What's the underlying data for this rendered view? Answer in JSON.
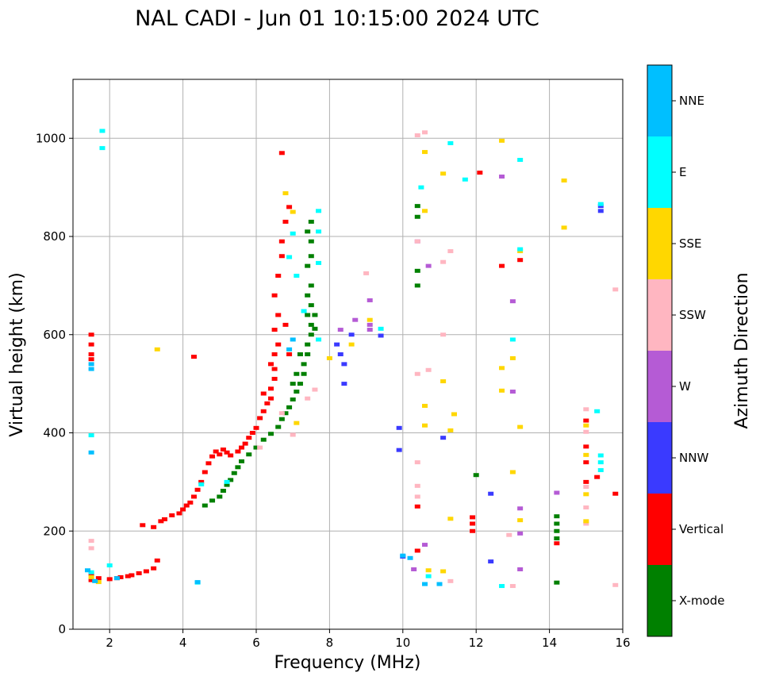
{
  "chart_data": {
    "type": "scatter",
    "title": "NAL CADI - Jun 01 10:15:00 2024 UTC",
    "xlabel": "Frequency (MHz)",
    "ylabel": "Virtual height (km)",
    "xlim": [
      1,
      16
    ],
    "ylim": [
      0,
      1120
    ],
    "xticks": [
      "2",
      "4",
      "6",
      "8",
      "10",
      "12",
      "14",
      "16"
    ],
    "yticks": [
      "0",
      "200",
      "400",
      "600",
      "800",
      "1000"
    ],
    "grid": true,
    "colorbar": {
      "label": "Azimuth Direction",
      "categories": [
        {
          "name": "X-mode",
          "color": "#008000"
        },
        {
          "name": "Vertical",
          "color": "#ff0000"
        },
        {
          "name": "NNW",
          "color": "#3a3aff"
        },
        {
          "name": "W",
          "color": "#b55bd5"
        },
        {
          "name": "SSW",
          "color": "#ffb6c1"
        },
        {
          "name": "SSE",
          "color": "#ffd700"
        },
        {
          "name": "E",
          "color": "#00ffff"
        },
        {
          "name": "NNE",
          "color": "#00bfff"
        }
      ]
    },
    "series": [
      {
        "name": "Vertical",
        "points": [
          [
            1.5,
            100
          ],
          [
            1.5,
            112
          ],
          [
            1.7,
            104
          ],
          [
            2.0,
            102
          ],
          [
            2.2,
            104
          ],
          [
            2.3,
            106
          ],
          [
            2.5,
            108
          ],
          [
            2.6,
            110
          ],
          [
            2.8,
            114
          ],
          [
            3.0,
            118
          ],
          [
            3.2,
            124
          ],
          [
            3.3,
            140
          ],
          [
            2.9,
            212
          ],
          [
            3.2,
            208
          ],
          [
            3.4,
            220
          ],
          [
            3.5,
            224
          ],
          [
            3.7,
            232
          ],
          [
            3.9,
            236
          ],
          [
            4.0,
            244
          ],
          [
            4.1,
            252
          ],
          [
            4.2,
            258
          ],
          [
            4.3,
            270
          ],
          [
            4.4,
            284
          ],
          [
            4.5,
            300
          ],
          [
            4.6,
            320
          ],
          [
            4.7,
            338
          ],
          [
            4.8,
            352
          ],
          [
            4.9,
            362
          ],
          [
            5.0,
            356
          ],
          [
            5.1,
            366
          ],
          [
            5.2,
            360
          ],
          [
            5.3,
            354
          ],
          [
            5.5,
            362
          ],
          [
            5.6,
            370
          ],
          [
            5.7,
            378
          ],
          [
            5.8,
            390
          ],
          [
            5.9,
            400
          ],
          [
            6.0,
            410
          ],
          [
            6.1,
            430
          ],
          [
            6.2,
            444
          ],
          [
            6.3,
            460
          ],
          [
            6.4,
            470
          ],
          [
            6.4,
            490
          ],
          [
            6.5,
            510
          ],
          [
            6.5,
            530
          ],
          [
            6.5,
            560
          ],
          [
            6.6,
            580
          ],
          [
            6.5,
            610
          ],
          [
            6.6,
            640
          ],
          [
            6.5,
            680
          ],
          [
            6.6,
            720
          ],
          [
            6.7,
            760
          ],
          [
            6.7,
            790
          ],
          [
            6.8,
            830
          ],
          [
            6.9,
            860
          ],
          [
            6.7,
            970
          ],
          [
            6.8,
            620
          ],
          [
            6.9,
            560
          ],
          [
            1.5,
            600
          ],
          [
            1.5,
            580
          ],
          [
            1.5,
            560
          ],
          [
            1.5,
            550
          ],
          [
            4.3,
            555
          ],
          [
            6.2,
            480
          ],
          [
            6.4,
            540
          ],
          [
            11.9,
            200
          ],
          [
            11.9,
            215
          ],
          [
            11.9,
            228
          ],
          [
            12.1,
            930
          ],
          [
            12.7,
            740
          ],
          [
            13.2,
            752
          ],
          [
            10.4,
            250
          ],
          [
            10.4,
            160
          ],
          [
            15.0,
            300
          ],
          [
            15.0,
            340
          ],
          [
            15.0,
            372
          ],
          [
            15.0,
            425
          ],
          [
            15.3,
            310
          ],
          [
            15.8,
            276
          ],
          [
            14.2,
            175
          ]
        ]
      },
      {
        "name": "X-mode",
        "points": [
          [
            4.6,
            252
          ],
          [
            4.8,
            262
          ],
          [
            5.0,
            270
          ],
          [
            5.1,
            282
          ],
          [
            5.2,
            294
          ],
          [
            5.3,
            304
          ],
          [
            5.4,
            318
          ],
          [
            5.5,
            330
          ],
          [
            5.6,
            342
          ],
          [
            5.8,
            356
          ],
          [
            6.0,
            370
          ],
          [
            6.2,
            386
          ],
          [
            6.4,
            398
          ],
          [
            6.6,
            412
          ],
          [
            6.7,
            428
          ],
          [
            6.8,
            440
          ],
          [
            6.9,
            452
          ],
          [
            7.0,
            468
          ],
          [
            7.1,
            484
          ],
          [
            7.2,
            500
          ],
          [
            7.3,
            520
          ],
          [
            7.3,
            540
          ],
          [
            7.4,
            560
          ],
          [
            7.4,
            580
          ],
          [
            7.5,
            600
          ],
          [
            7.5,
            620
          ],
          [
            7.4,
            640
          ],
          [
            7.5,
            660
          ],
          [
            7.4,
            680
          ],
          [
            7.5,
            700
          ],
          [
            7.4,
            740
          ],
          [
            7.5,
            760
          ],
          [
            7.5,
            790
          ],
          [
            7.5,
            830
          ],
          [
            7.4,
            810
          ],
          [
            7.2,
            560
          ],
          [
            7.1,
            520
          ],
          [
            7.6,
            640
          ],
          [
            10.4,
            862
          ],
          [
            10.4,
            840
          ],
          [
            10.4,
            730
          ],
          [
            10.4,
            700
          ],
          [
            12.0,
            314
          ],
          [
            14.2,
            230
          ],
          [
            14.2,
            215
          ],
          [
            14.2,
            200
          ],
          [
            14.2,
            185
          ],
          [
            14.2,
            95
          ],
          [
            7.6,
            612
          ],
          [
            7.0,
            500
          ]
        ]
      },
      {
        "name": "NNW",
        "points": [
          [
            8.2,
            580
          ],
          [
            8.3,
            560
          ],
          [
            8.4,
            540
          ],
          [
            8.4,
            500
          ],
          [
            8.6,
            600
          ],
          [
            9.4,
            598
          ],
          [
            9.9,
            410
          ],
          [
            9.9,
            365
          ],
          [
            10.0,
            148
          ],
          [
            11.1,
            390
          ],
          [
            12.4,
            276
          ],
          [
            12.4,
            138
          ],
          [
            15.4,
            852
          ],
          [
            15.4,
            862
          ]
        ]
      },
      {
        "name": "W",
        "points": [
          [
            8.3,
            610
          ],
          [
            8.7,
            630
          ],
          [
            9.1,
            620
          ],
          [
            9.1,
            670
          ],
          [
            9.1,
            610
          ],
          [
            10.4,
            790
          ],
          [
            13.0,
            668
          ],
          [
            13.0,
            484
          ],
          [
            13.2,
            195
          ],
          [
            13.2,
            122
          ],
          [
            13.2,
            246
          ],
          [
            12.7,
            922
          ],
          [
            14.2,
            278
          ],
          [
            10.6,
            172
          ],
          [
            10.3,
            122
          ],
          [
            10.7,
            740
          ]
        ]
      },
      {
        "name": "SSW",
        "points": [
          [
            1.5,
            180
          ],
          [
            1.5,
            165
          ],
          [
            6.7,
            440
          ],
          [
            7.4,
            470
          ],
          [
            7.6,
            488
          ],
          [
            7.0,
            396
          ],
          [
            6.1,
            370
          ],
          [
            9.0,
            725
          ],
          [
            10.6,
            1012
          ],
          [
            10.4,
            1006
          ],
          [
            10.4,
            790
          ],
          [
            10.7,
            528
          ],
          [
            10.4,
            520
          ],
          [
            10.4,
            340
          ],
          [
            10.4,
            292
          ],
          [
            11.1,
            748
          ],
          [
            11.1,
            600
          ],
          [
            11.3,
            770
          ],
          [
            12.9,
            192
          ],
          [
            15.0,
            215
          ],
          [
            15.0,
            248
          ],
          [
            15.0,
            448
          ],
          [
            15.0,
            402
          ],
          [
            15.0,
            290
          ],
          [
            15.8,
            692
          ],
          [
            15.8,
            90
          ],
          [
            13.0,
            88
          ],
          [
            11.3,
            98
          ],
          [
            10.4,
            270
          ]
        ]
      },
      {
        "name": "SSE",
        "points": [
          [
            1.5,
            106
          ],
          [
            1.7,
            96
          ],
          [
            3.3,
            570
          ],
          [
            6.8,
            888
          ],
          [
            7.0,
            850
          ],
          [
            7.1,
            420
          ],
          [
            8.0,
            552
          ],
          [
            8.6,
            580
          ],
          [
            9.1,
            630
          ],
          [
            10.6,
            972
          ],
          [
            10.6,
            852
          ],
          [
            10.6,
            455
          ],
          [
            10.6,
            415
          ],
          [
            11.1,
            928
          ],
          [
            11.1,
            505
          ],
          [
            11.3,
            405
          ],
          [
            11.4,
            438
          ],
          [
            11.3,
            225
          ],
          [
            11.1,
            118
          ],
          [
            10.7,
            120
          ],
          [
            12.7,
            995
          ],
          [
            12.7,
            532
          ],
          [
            12.7,
            486
          ],
          [
            13.0,
            552
          ],
          [
            13.0,
            320
          ],
          [
            13.2,
            770
          ],
          [
            13.2,
            412
          ],
          [
            13.2,
            222
          ],
          [
            14.4,
            914
          ],
          [
            14.4,
            818
          ],
          [
            15.0,
            275
          ],
          [
            15.0,
            355
          ],
          [
            15.0,
            415
          ],
          [
            15.0,
            220
          ]
        ]
      },
      {
        "name": "E",
        "points": [
          [
            1.5,
            116
          ],
          [
            1.5,
            395
          ],
          [
            1.8,
            1015
          ],
          [
            1.8,
            980
          ],
          [
            2.0,
            130
          ],
          [
            4.4,
            95
          ],
          [
            4.5,
            295
          ],
          [
            5.2,
            300
          ],
          [
            6.9,
            758
          ],
          [
            7.0,
            806
          ],
          [
            7.1,
            720
          ],
          [
            7.3,
            648
          ],
          [
            7.7,
            852
          ],
          [
            7.7,
            810
          ],
          [
            7.7,
            746
          ],
          [
            7.7,
            590
          ],
          [
            9.4,
            612
          ],
          [
            10.5,
            900
          ],
          [
            11.3,
            990
          ],
          [
            11.7,
            916
          ],
          [
            12.7,
            88
          ],
          [
            13.0,
            590
          ],
          [
            13.2,
            774
          ],
          [
            13.2,
            956
          ],
          [
            15.3,
            444
          ],
          [
            15.4,
            354
          ],
          [
            15.4,
            340
          ],
          [
            15.4,
            324
          ],
          [
            15.4,
            866
          ],
          [
            10.7,
            108
          ]
        ]
      },
      {
        "name": "NNE",
        "points": [
          [
            1.5,
            540
          ],
          [
            1.5,
            530
          ],
          [
            1.5,
            360
          ],
          [
            1.4,
            120
          ],
          [
            1.6,
            98
          ],
          [
            2.2,
            104
          ],
          [
            4.4,
            96
          ],
          [
            6.9,
            570
          ],
          [
            7.0,
            590
          ],
          [
            10.0,
            150
          ],
          [
            10.2,
            145
          ],
          [
            10.6,
            92
          ],
          [
            11.0,
            92
          ]
        ]
      }
    ]
  }
}
